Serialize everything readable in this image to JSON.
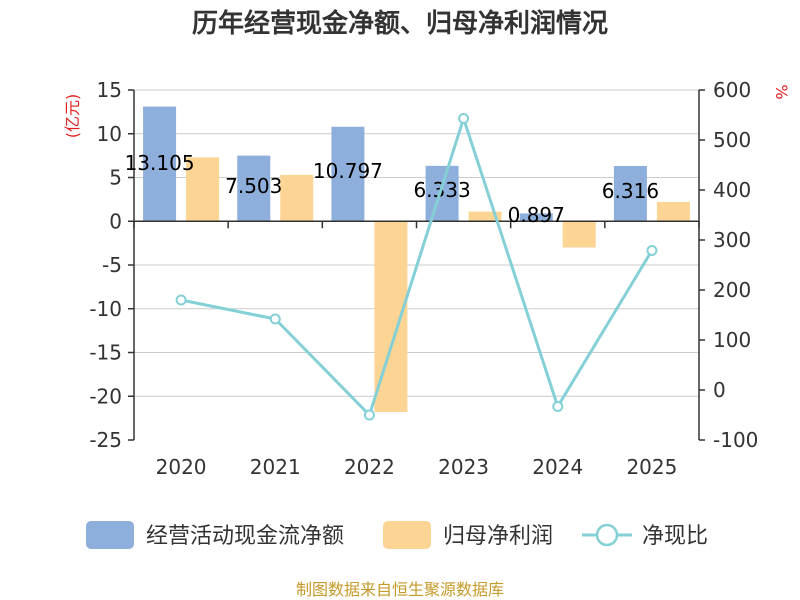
{
  "chart_data": {
    "type": "bar+line",
    "title": "历年经营现金净额、归母净利润情况",
    "categories": [
      "2020",
      "2021",
      "2022",
      "2023",
      "2024",
      "2025"
    ],
    "left_axis": {
      "unit": "(亿元)",
      "ylim": [
        -25,
        15
      ],
      "ticks": [
        15,
        10,
        5,
        0,
        -5,
        -10,
        -15,
        -20,
        -25
      ]
    },
    "right_axis": {
      "unit": "%",
      "ylim": [
        -100,
        600
      ],
      "ticks": [
        600,
        500,
        400,
        300,
        200,
        100,
        0,
        -100
      ]
    },
    "series": [
      {
        "name": "经营活动现金流净额",
        "type": "bar",
        "axis": "left",
        "color": "#8eaedb",
        "values": [
          13.105,
          7.503,
          10.797,
          6.333,
          0.897,
          6.316
        ],
        "labels": [
          "13.105",
          "7.503",
          "10.797",
          "6.333",
          "0.897",
          "6.316"
        ]
      },
      {
        "name": "归母净利润",
        "type": "bar",
        "axis": "left",
        "color": "#fcd494",
        "values": [
          7.3,
          5.3,
          -21.8,
          1.1,
          -3.0,
          2.2
        ]
      },
      {
        "name": "净现比",
        "type": "line",
        "axis": "right",
        "color": "#84d0d6",
        "values": [
          180,
          142,
          -50,
          543,
          -33,
          279
        ]
      }
    ],
    "source": "制图数据来自恒生聚源数据库",
    "colors": {
      "title": "#333333",
      "unit": "#e02020",
      "source": "#c49a2a",
      "grid": "#cccccc"
    }
  }
}
